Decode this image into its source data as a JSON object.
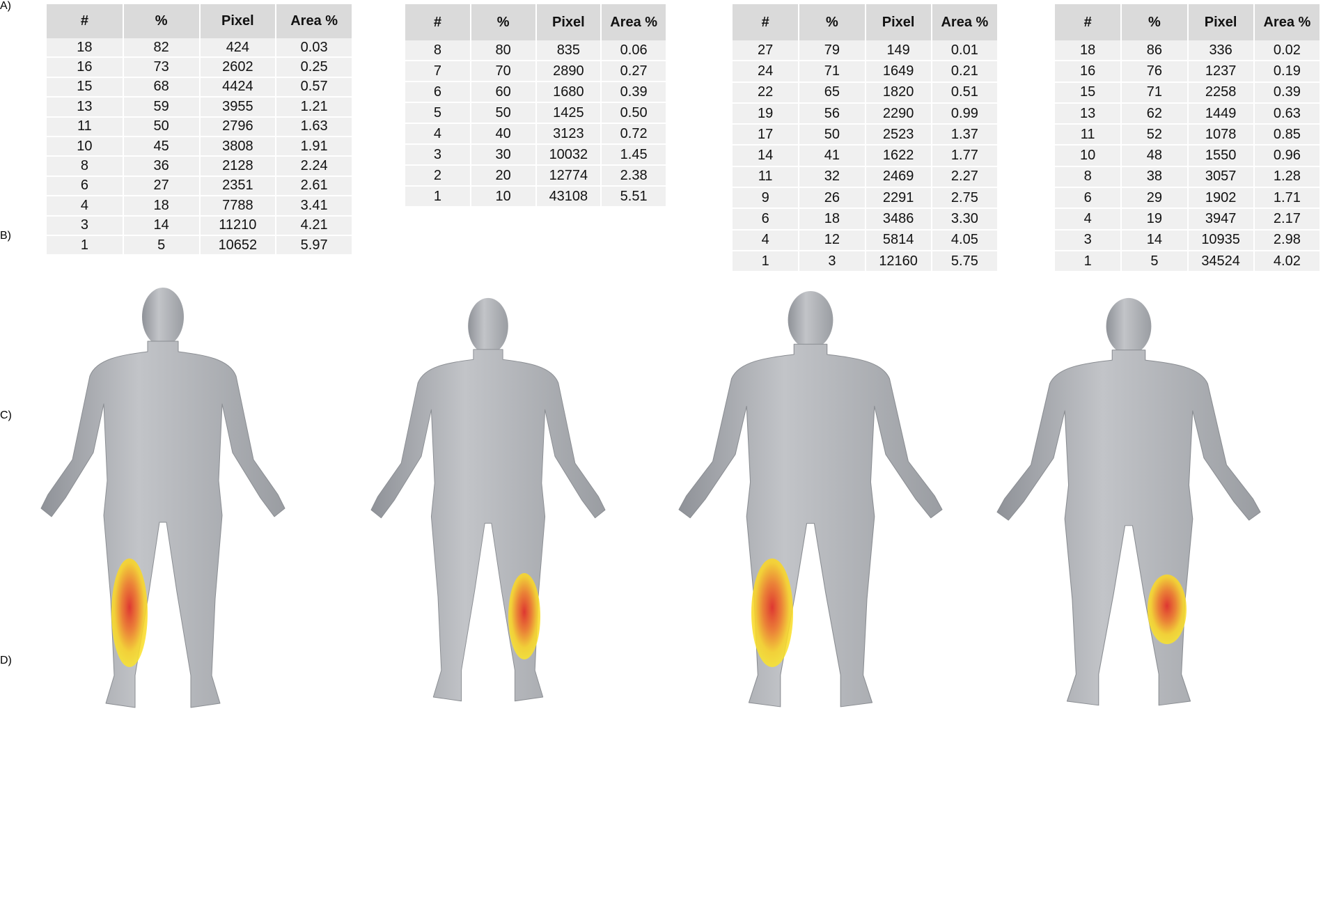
{
  "panels": [
    {
      "label": "A)",
      "table": {
        "header": [
          "#",
          "%",
          "Pixel",
          "Area %"
        ],
        "rows": [
          [
            "18",
            "82",
            "424",
            "0.03"
          ],
          [
            "16",
            "73",
            "2602",
            "0.25"
          ],
          [
            "15",
            "68",
            "4424",
            "0.57"
          ],
          [
            "13",
            "59",
            "3955",
            "1.21"
          ],
          [
            "11",
            "50",
            "2796",
            "1.63"
          ],
          [
            "10",
            "45",
            "3808",
            "1.91"
          ],
          [
            "8",
            "36",
            "2128",
            "2.24"
          ],
          [
            "6",
            "27",
            "2351",
            "2.61"
          ],
          [
            "4",
            "18",
            "7788",
            "3.41"
          ],
          [
            "3",
            "14",
            "11210",
            "4.21"
          ],
          [
            "1",
            "5",
            "10652",
            "5.97"
          ]
        ]
      }
    },
    {
      "label": "B)",
      "table": {
        "header": [
          "#",
          "%",
          "Pixel",
          "Area %"
        ],
        "rows": [
          [
            "8",
            "80",
            "835",
            "0.06"
          ],
          [
            "7",
            "70",
            "2890",
            "0.27"
          ],
          [
            "6",
            "60",
            "1680",
            "0.39"
          ],
          [
            "5",
            "50",
            "1425",
            "0.50"
          ],
          [
            "4",
            "40",
            "3123",
            "0.72"
          ],
          [
            "3",
            "30",
            "10032",
            "1.45"
          ],
          [
            "2",
            "20",
            "12774",
            "2.38"
          ],
          [
            "1",
            "10",
            "43108",
            "5.51"
          ]
        ]
      }
    },
    {
      "label": "C)",
      "table": {
        "header": [
          "#",
          "%",
          "Pixel",
          "Area %"
        ],
        "rows": [
          [
            "27",
            "79",
            "149",
            "0.01"
          ],
          [
            "24",
            "71",
            "1649",
            "0.21"
          ],
          [
            "22",
            "65",
            "1820",
            "0.51"
          ],
          [
            "19",
            "56",
            "2290",
            "0.99"
          ],
          [
            "17",
            "50",
            "2523",
            "1.37"
          ],
          [
            "14",
            "41",
            "1622",
            "1.77"
          ],
          [
            "11",
            "32",
            "2469",
            "2.27"
          ],
          [
            "9",
            "26",
            "2291",
            "2.75"
          ],
          [
            "6",
            "18",
            "3486",
            "3.30"
          ],
          [
            "4",
            "12",
            "5814",
            "4.05"
          ],
          [
            "1",
            "3",
            "12160",
            "5.75"
          ]
        ]
      }
    },
    {
      "label": "D)",
      "table": {
        "header": [
          "#",
          "%",
          "Pixel",
          "Area %"
        ],
        "rows": [
          [
            "18",
            "86",
            "336",
            "0.02"
          ],
          [
            "16",
            "76",
            "1237",
            "0.19"
          ],
          [
            "15",
            "71",
            "2258",
            "0.39"
          ],
          [
            "13",
            "62",
            "1449",
            "0.63"
          ],
          [
            "11",
            "52",
            "1078",
            "0.85"
          ],
          [
            "10",
            "48",
            "1550",
            "0.96"
          ],
          [
            "8",
            "38",
            "3057",
            "1.28"
          ],
          [
            "6",
            "29",
            "1902",
            "1.71"
          ],
          [
            "4",
            "19",
            "3947",
            "2.17"
          ],
          [
            "3",
            "14",
            "10935",
            "2.98"
          ],
          [
            "1",
            "5",
            "34524",
            "4.02"
          ]
        ]
      }
    }
  ]
}
